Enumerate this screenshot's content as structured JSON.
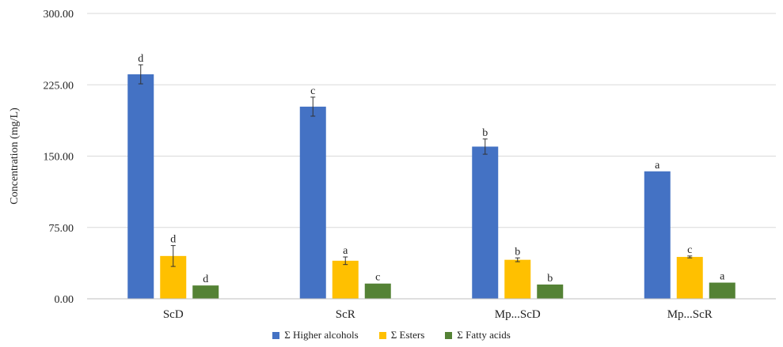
{
  "chart_data": {
    "type": "bar",
    "title": "",
    "xlabel": "",
    "ylabel": "Concentration (mg/L)",
    "ylim": [
      0,
      300
    ],
    "yticks": [
      "0.00",
      "75.00",
      "150.00",
      "225.00",
      "300.00"
    ],
    "ytick_values": [
      0,
      75,
      150,
      225,
      300
    ],
    "grid": true,
    "legend_position": "bottom",
    "categories": [
      "ScD",
      "ScR",
      "Mp...ScD",
      "Mp...ScR"
    ],
    "series": [
      {
        "name": "Σ Higher alcohols",
        "color": "#4472c4",
        "values": [
          236,
          202,
          160,
          134
        ],
        "errors": [
          10,
          10,
          8,
          0
        ],
        "letters": [
          "d",
          "c",
          "b",
          "a"
        ]
      },
      {
        "name": "Σ Esters",
        "color": "#ffc000",
        "values": [
          45,
          40,
          41,
          44
        ],
        "errors": [
          11,
          4,
          2,
          1
        ],
        "letters": [
          "d",
          "a",
          "b",
          "c"
        ]
      },
      {
        "name": "Σ Fatty acids",
        "color": "#548235",
        "values": [
          14,
          16,
          15,
          17
        ],
        "errors": [
          0,
          0,
          0,
          0
        ],
        "letters": [
          "d",
          "c",
          "b",
          "a"
        ]
      }
    ]
  }
}
